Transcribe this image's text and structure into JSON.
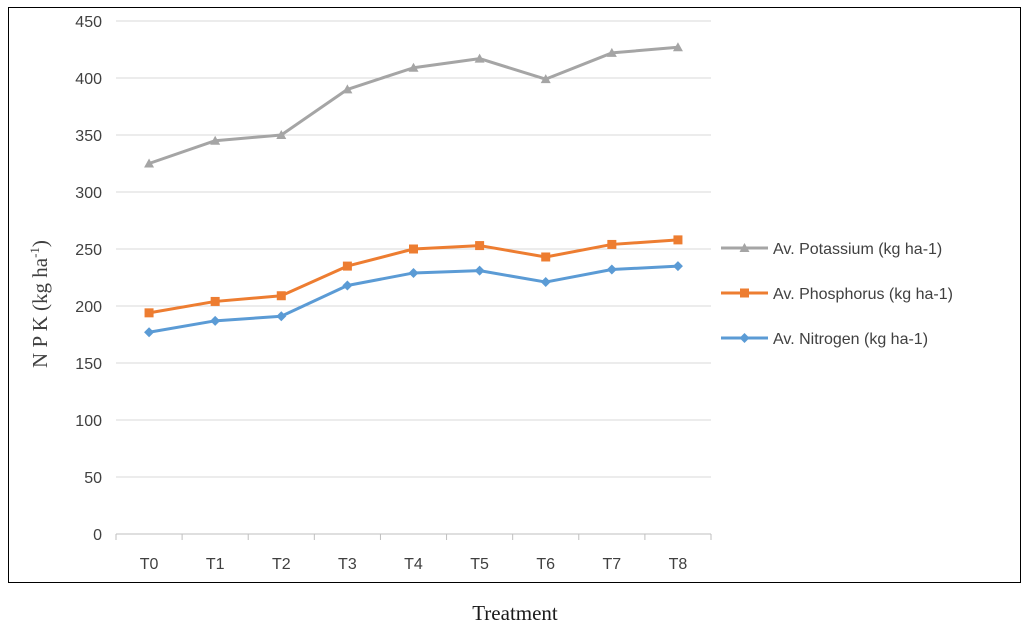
{
  "chart_data": {
    "type": "line",
    "categories": [
      "T0",
      "T1",
      "T2",
      "T3",
      "T4",
      "T5",
      "T6",
      "T7",
      "T8"
    ],
    "series": [
      {
        "name": "Av. Potassium (kg ha-1)",
        "values": [
          325,
          345,
          350,
          390,
          409,
          417,
          399,
          422,
          427
        ],
        "color": "#a5a5a5",
        "marker": "triangle"
      },
      {
        "name": "Av. Phosphorus (kg ha-1)",
        "values": [
          194,
          204,
          209,
          235,
          250,
          253,
          243,
          254,
          258
        ],
        "color": "#ed7d31",
        "marker": "square"
      },
      {
        "name": "Av. Nitrogen (kg ha-1)",
        "values": [
          177,
          187,
          191,
          218,
          229,
          231,
          221,
          232,
          235
        ],
        "color": "#5b9bd5",
        "marker": "diamond"
      }
    ],
    "ylim": [
      0,
      450
    ],
    "yticks": [
      0,
      50,
      100,
      150,
      200,
      250,
      300,
      350,
      400,
      450
    ],
    "ylabel_main": "N P K (kg ha",
    "ylabel_sup": "-1",
    "ylabel_close": ")",
    "xlabel": "Treatment",
    "grid": true,
    "legend_position": "right",
    "legend_order": [
      0,
      1,
      2
    ]
  }
}
